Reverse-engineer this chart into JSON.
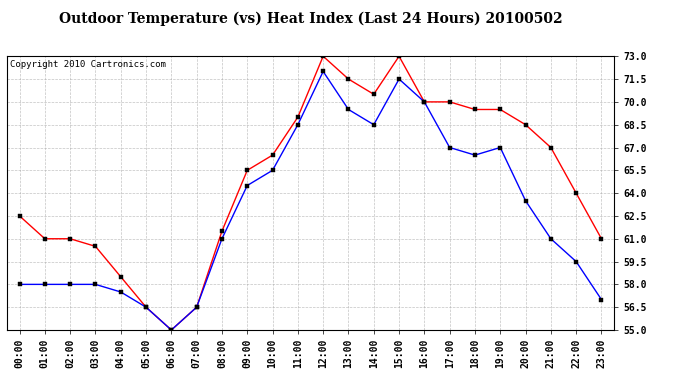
{
  "title": "Outdoor Temperature (vs) Heat Index (Last 24 Hours) 20100502",
  "copyright": "Copyright 2010 Cartronics.com",
  "x_labels": [
    "00:00",
    "01:00",
    "02:00",
    "03:00",
    "04:00",
    "05:00",
    "06:00",
    "07:00",
    "08:00",
    "09:00",
    "10:00",
    "11:00",
    "12:00",
    "13:00",
    "14:00",
    "15:00",
    "16:00",
    "17:00",
    "18:00",
    "19:00",
    "20:00",
    "21:00",
    "22:00",
    "23:00"
  ],
  "red_values": [
    62.5,
    61.0,
    61.0,
    60.5,
    58.5,
    56.5,
    55.0,
    56.5,
    61.5,
    65.5,
    66.5,
    69.0,
    73.0,
    71.5,
    70.5,
    73.0,
    70.0,
    70.0,
    69.5,
    69.5,
    68.5,
    67.0,
    64.0,
    61.0
  ],
  "blue_values": [
    58.0,
    58.0,
    58.0,
    58.0,
    57.5,
    56.5,
    55.0,
    56.5,
    61.0,
    64.5,
    65.5,
    68.5,
    72.0,
    69.5,
    68.5,
    71.5,
    70.0,
    67.0,
    66.5,
    67.0,
    63.5,
    61.0,
    59.5,
    57.0
  ],
  "red_color": "#ff0000",
  "blue_color": "#0000ff",
  "ylim": [
    55.0,
    73.0
  ],
  "yticks": [
    55.0,
    56.5,
    58.0,
    59.5,
    61.0,
    62.5,
    64.0,
    65.5,
    67.0,
    68.5,
    70.0,
    71.5,
    73.0
  ],
  "bg_color": "#ffffff",
  "grid_color": "#aaaaaa",
  "title_fontsize": 10,
  "copyright_fontsize": 6.5,
  "tick_fontsize": 7,
  "marker_size": 3
}
